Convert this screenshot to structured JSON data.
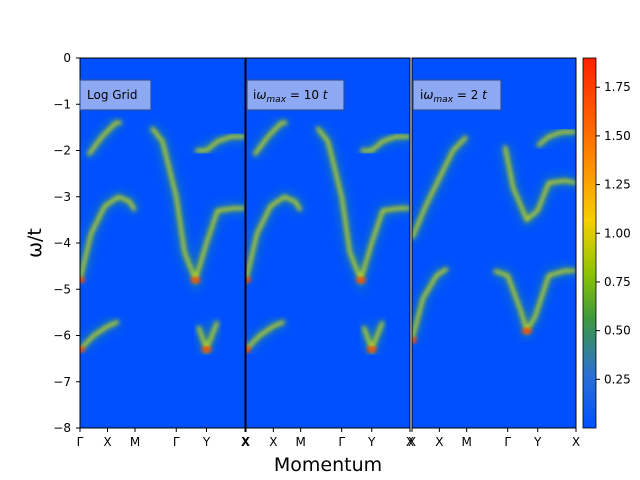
{
  "chart_data": {
    "type": "heatmap",
    "xlabel": "Momentum",
    "ylabel": "ω/t",
    "ylim": [
      -8,
      0
    ],
    "yticks": [
      "0",
      "−1",
      "−2",
      "−3",
      "−4",
      "−5",
      "−6",
      "−7",
      "−8"
    ],
    "ytick_values": [
      0,
      -1,
      -2,
      -3,
      -4,
      -5,
      -6,
      -7,
      -8
    ],
    "colorbar": {
      "range": [
        0,
        1.9
      ],
      "ticks": [
        "0.25",
        "0.50",
        "0.75",
        "1.00",
        "1.25",
        "1.50",
        "1.75"
      ],
      "tick_values": [
        0.25,
        0.5,
        0.75,
        1.0,
        1.25,
        1.5,
        1.75
      ],
      "colormap": [
        "#0050ff",
        "#2a6fd6",
        "#3f9a3a",
        "#8fc400",
        "#f5d000",
        "#ff7a00",
        "#ff2000"
      ]
    },
    "panels": [
      {
        "label": "Log Grid",
        "xticks": [
          "Γ",
          "X",
          "M",
          "Γ",
          "Y",
          "X"
        ],
        "bands": [
          {
            "x": [
              0,
              0.4,
              0.9,
              1.4,
              1.8,
              2.0
            ],
            "y": [
              -4.8,
              -3.8,
              -3.2,
              -3.0,
              -3.1,
              -3.3
            ]
          },
          {
            "x": [
              0,
              0.5,
              1.0,
              1.4
            ],
            "y": [
              -6.3,
              -6.0,
              -5.8,
              -5.7
            ]
          },
          {
            "x": [
              0.3,
              0.8,
              1.3,
              1.5
            ],
            "y": [
              -2.1,
              -1.7,
              -1.4,
              -1.4
            ]
          },
          {
            "x": [
              2.6,
              3.0,
              3.5,
              3.8,
              4.2,
              4.6,
              5.0,
              5.6,
              6.0
            ],
            "y": [
              -1.5,
              -1.8,
              -3.0,
              -4.2,
              -4.8,
              -4.0,
              -3.3,
              -3.25,
              -3.25
            ]
          },
          {
            "x": [
              4.3,
              4.6,
              5.0
            ],
            "y": [
              -5.8,
              -6.3,
              -5.7
            ]
          },
          {
            "x": [
              4.2,
              4.6,
              5.0,
              5.5,
              6.0
            ],
            "y": [
              -2.0,
              -2.0,
              -1.8,
              -1.7,
              -1.7
            ]
          }
        ],
        "peak_intensity": 1.8
      },
      {
        "label": "iω_max = 10 t",
        "label_parts": {
          "i": "i",
          "omega": "ω",
          "sub": "max",
          "eq": " = 10 ",
          "unit": "t"
        },
        "xticks": [
          "X",
          "X",
          "M",
          "Γ",
          "Y",
          "X"
        ],
        "bands": [
          {
            "x": [
              0,
              0.4,
              0.9,
              1.4,
              1.8,
              2.0
            ],
            "y": [
              -4.8,
              -3.8,
              -3.2,
              -3.0,
              -3.1,
              -3.3
            ]
          },
          {
            "x": [
              0,
              0.5,
              1.0,
              1.4
            ],
            "y": [
              -6.3,
              -6.0,
              -5.8,
              -5.7
            ]
          },
          {
            "x": [
              0.3,
              0.8,
              1.3,
              1.5
            ],
            "y": [
              -2.1,
              -1.7,
              -1.4,
              -1.4
            ]
          },
          {
            "x": [
              2.6,
              3.0,
              3.5,
              3.8,
              4.2,
              4.6,
              5.0,
              5.6,
              6.0
            ],
            "y": [
              -1.5,
              -1.8,
              -3.0,
              -4.2,
              -4.8,
              -4.0,
              -3.3,
              -3.25,
              -3.25
            ]
          },
          {
            "x": [
              4.3,
              4.6,
              5.0
            ],
            "y": [
              -5.8,
              -6.3,
              -5.7
            ]
          },
          {
            "x": [
              4.2,
              4.6,
              5.0,
              5.5,
              6.0
            ],
            "y": [
              -2.0,
              -2.0,
              -1.8,
              -1.7,
              -1.7
            ]
          }
        ],
        "peak_intensity": 1.8
      },
      {
        "label": "iω_max = 2 t",
        "label_parts": {
          "i": "i",
          "omega": "ω",
          "sub": "max",
          "eq": " = 2 ",
          "unit": "t"
        },
        "xticks": [
          "X",
          "X",
          "M",
          "Γ",
          "Y",
          "X"
        ],
        "bands": [
          {
            "x": [
              0,
              0.5,
              1.0,
              1.5,
              2.0
            ],
            "y": [
              -3.9,
              -3.2,
              -2.6,
              -2.0,
              -1.7
            ]
          },
          {
            "x": [
              0,
              0.4,
              0.9,
              1.3
            ],
            "y": [
              -6.1,
              -5.2,
              -4.7,
              -4.55
            ]
          },
          {
            "x": [
              3.4,
              3.7,
              4.2,
              4.6,
              5.0,
              5.6,
              6.0
            ],
            "y": [
              -1.9,
              -2.8,
              -3.5,
              -3.3,
              -2.7,
              -2.65,
              -2.7
            ]
          },
          {
            "x": [
              3.0,
              3.5,
              4.0,
              4.2,
              4.5,
              5.0,
              5.6,
              6.0
            ],
            "y": [
              -4.6,
              -4.7,
              -5.5,
              -5.9,
              -5.6,
              -4.7,
              -4.6,
              -4.6
            ]
          },
          {
            "x": [
              4.6,
              5.0,
              5.5,
              6.0
            ],
            "y": [
              -1.9,
              -1.7,
              -1.6,
              -1.6
            ]
          }
        ],
        "peak_intensity": 1.8
      }
    ]
  }
}
